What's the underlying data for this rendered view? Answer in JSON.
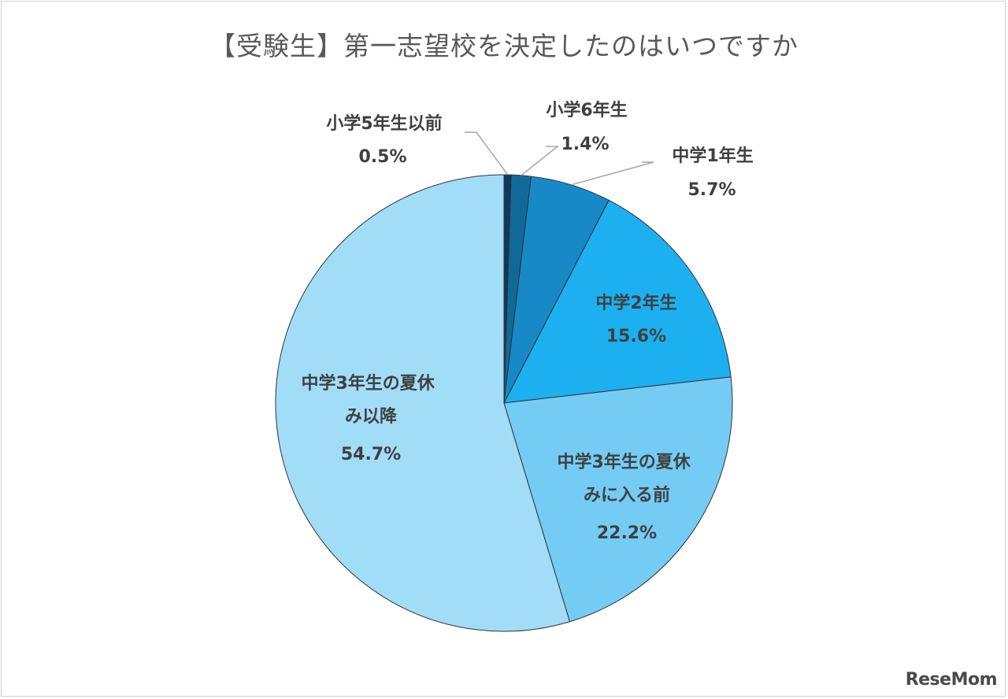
{
  "chart_data": {
    "type": "pie",
    "title": "【受験生】第一志望校を決定したのはいつですか",
    "start_angle_deg": 0,
    "direction": "clockwise",
    "legend": "none",
    "slices": [
      {
        "label": "小学5年生以前",
        "value": 0.5,
        "display": "0.5%",
        "color": "#0d3a5c"
      },
      {
        "label": "小学6年生",
        "value": 1.4,
        "display": "1.4%",
        "color": "#0f6a9a"
      },
      {
        "label": "中学1年生",
        "value": 5.7,
        "display": "5.7%",
        "color": "#1689c6"
      },
      {
        "label": "中学2年生",
        "value": 15.6,
        "display": "15.6%",
        "color": "#1cb0f0"
      },
      {
        "label": "中学3年生の夏休みに入る前",
        "value": 22.2,
        "display": "22.2%",
        "color": "#74ccf5"
      },
      {
        "label": "中学3年生の夏休み以降",
        "value": 54.7,
        "display": "54.7%",
        "color": "#a2ddf8"
      }
    ]
  },
  "watermark": {
    "text": "ReseMom"
  }
}
